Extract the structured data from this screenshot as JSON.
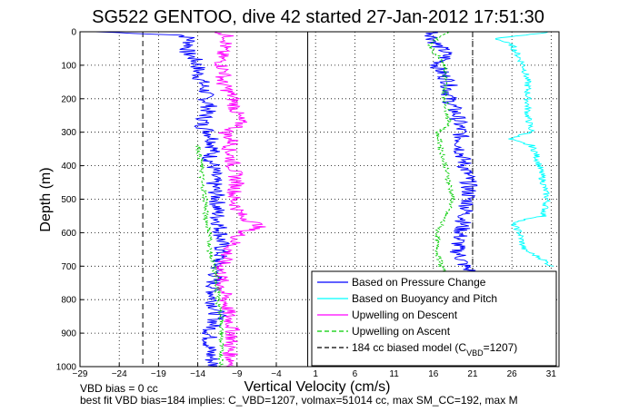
{
  "chart_data": {
    "type": "line",
    "title": "SG522 GENTOO, dive 42 started 27-Jan-2012 17:51:30",
    "xlabel": "Vertical Velocity (cm/s)",
    "ylabel": "Depth (m)",
    "xlim": [
      -29,
      32
    ],
    "ylim": [
      0,
      1000
    ],
    "y_reversed": true,
    "grid": true,
    "x_ticks": [
      -29,
      -24,
      -19,
      -14,
      -9,
      -4,
      1,
      6,
      11,
      16,
      21,
      26,
      31
    ],
    "y_ticks": [
      0,
      100,
      200,
      300,
      400,
      500,
      600,
      700,
      800,
      900,
      1000
    ],
    "legend_position": "bottom-right",
    "legend": [
      {
        "label": "Based on Pressure Change",
        "color": "#0000ff",
        "style": "solid"
      },
      {
        "label": "Based on Buoyancy and Pitch",
        "color": "#00ffff",
        "style": "solid"
      },
      {
        "label": "Upwelling on Descent",
        "color": "#ff00ff",
        "style": "solid"
      },
      {
        "label": "Upwelling on Ascent",
        "color": "#00cc00",
        "style": "dashed"
      },
      {
        "label_prefix": "184 cc biased model (C",
        "label_sub": "VBD",
        "label_suffix": "=1207)",
        "color": "#000000",
        "style": "dashed"
      }
    ],
    "series": [
      {
        "name": "Based on Pressure Change",
        "color": "#0000ff",
        "segments": [
          {
            "depth": [
              0,
              10,
              20,
              40,
              60,
              80,
              100,
              120,
              150,
              180,
              200,
              220,
              250,
              280,
              300,
              320,
              350,
              380,
              400,
              450,
              500,
              550,
              600,
              650,
              700,
              750,
              800,
              850,
              900,
              950,
              1000
            ],
            "value": [
              -27,
              -16,
              -15,
              -15,
              -15.5,
              -14.5,
              -14,
              -14,
              -13.5,
              -13,
              -13,
              -12.5,
              -13,
              -13.5,
              -12.5,
              -12,
              -12,
              -12.5,
              -12,
              -12,
              -11.5,
              -11.5,
              -11,
              -11,
              -11.5,
              -12,
              -12,
              -11.5,
              -12.5,
              -12.5,
              -12
            ]
          },
          {
            "depth": [
              0,
              20,
              40,
              60,
              80,
              100,
              120,
              150,
              200,
              250,
              300,
              350,
              400,
              450,
              500,
              550,
              600,
              650,
              700,
              720
            ],
            "value": [
              16,
              16,
              16.5,
              17.5,
              17.5,
              16.5,
              17,
              18,
              18,
              19,
              19.5,
              19.5,
              20,
              20.5,
              20.5,
              20,
              19.5,
              19,
              20,
              21
            ]
          }
        ]
      },
      {
        "name": "Based on Buoyancy and Pitch",
        "color": "#00ffff",
        "segments": [
          {
            "depth": [
              0,
              20,
              40,
              60,
              80,
              100,
              150,
              200,
              250,
              300,
              320,
              340,
              360,
              400,
              450,
              500,
              550,
              570,
              600,
              650,
              680,
              700
            ],
            "value": [
              31,
              24,
              26,
              26.5,
              27,
              27.5,
              28,
              28,
              28,
              28.5,
              25.5,
              28.5,
              29,
              29.5,
              30,
              30.5,
              30,
              26,
              27,
              27.5,
              30,
              31
            ]
          }
        ]
      },
      {
        "name": "Upwelling on Descent",
        "color": "#ff00ff",
        "segments": [
          {
            "depth": [
              0,
              20,
              40,
              60,
              80,
              100,
              120,
              150,
              180,
              200,
              250,
              280,
              300,
              330,
              350,
              400,
              450,
              500,
              550,
              580,
              600,
              650,
              700,
              750,
              800,
              850,
              900,
              950,
              1000
            ],
            "value": [
              -11,
              -10,
              -10.5,
              -11,
              -11,
              -11,
              -10.5,
              -11,
              -10,
              -9.5,
              -9,
              -8.5,
              -10.5,
              -9.5,
              -10,
              -9.5,
              -9,
              -9.5,
              -8.5,
              -6,
              -8.5,
              -10,
              -11,
              -11,
              -10.5,
              -10,
              -9.5,
              -10,
              -9.5
            ]
          }
        ]
      },
      {
        "name": "Upwelling on Ascent",
        "color": "#00cc00",
        "segments": [
          {
            "depth": [
              340,
              400,
              450,
              500,
              550,
              600,
              650,
              700,
              750,
              800,
              850,
              900,
              950,
              1000
            ],
            "value": [
              -14,
              -13.5,
              -13.5,
              -13,
              -13,
              -12.5,
              -12.5,
              -12,
              -11.5,
              -11.5,
              -11,
              -11,
              -11,
              -11
            ]
          },
          {
            "depth": [
              0,
              20,
              40,
              60,
              80,
              100,
              200,
              280,
              300,
              350,
              400,
              450,
              500,
              550,
              600,
              650,
              700,
              720
            ],
            "value": [
              18,
              16.5,
              15.5,
              16,
              17,
              17.5,
              17.5,
              18,
              16.5,
              17,
              17.5,
              18,
              18.5,
              17.5,
              16.5,
              16.5,
              17,
              17.5
            ]
          }
        ]
      }
    ],
    "reference_lines": [
      {
        "x": -21,
        "style": "dashed",
        "color": "#000000"
      },
      {
        "x": 0,
        "style": "solid",
        "color": "#000000"
      },
      {
        "x": 21,
        "style": "dashed",
        "color": "#000000"
      }
    ]
  },
  "footer": {
    "line1": "VBD bias = 0 cc",
    "line2": "best fit VBD bias=184 implies: C_VBD=1207, volmax=51014 cc, max SM_CC=192, max M"
  }
}
